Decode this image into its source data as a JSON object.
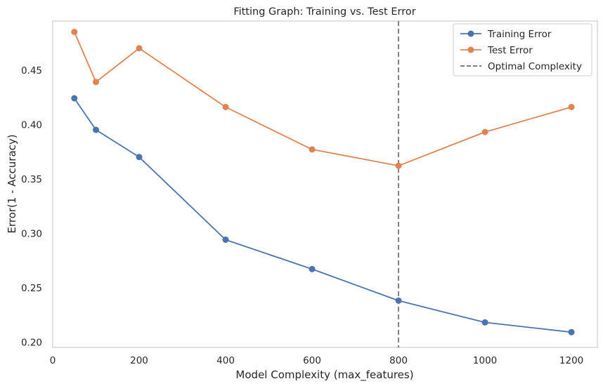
{
  "chart_data": {
    "type": "line",
    "title": "Fitting Graph: Training vs. Test Error",
    "xlabel": "Model Complexity (max_features)",
    "ylabel": "Error(1 - Accuracy)",
    "x": [
      50,
      100,
      200,
      400,
      600,
      800,
      1000,
      1200
    ],
    "xlim": [
      0,
      1260
    ],
    "ylim": [
      0.195,
      0.495
    ],
    "xticks": [
      "0",
      "200",
      "400",
      "600",
      "800",
      "1000",
      "1200"
    ],
    "yticks": [
      "0.20",
      "0.25",
      "0.30",
      "0.35",
      "0.40",
      "0.45"
    ],
    "grid": false,
    "legend_position": "top-right",
    "series": [
      {
        "name": "Training Error",
        "color": "#4c72b0",
        "marker": "circle",
        "values": [
          0.424,
          0.395,
          0.37,
          0.294,
          0.267,
          0.238,
          0.218,
          0.209
        ]
      },
      {
        "name": "Test Error",
        "color": "#dd8452",
        "marker": "circle",
        "values": [
          0.485,
          0.439,
          0.47,
          0.416,
          0.377,
          0.362,
          0.393,
          0.416
        ]
      }
    ],
    "reference_lines": [
      {
        "name": "Optimal Complexity",
        "orientation": "vertical",
        "x": 800,
        "color": "#808080",
        "style": "dashed"
      }
    ]
  }
}
